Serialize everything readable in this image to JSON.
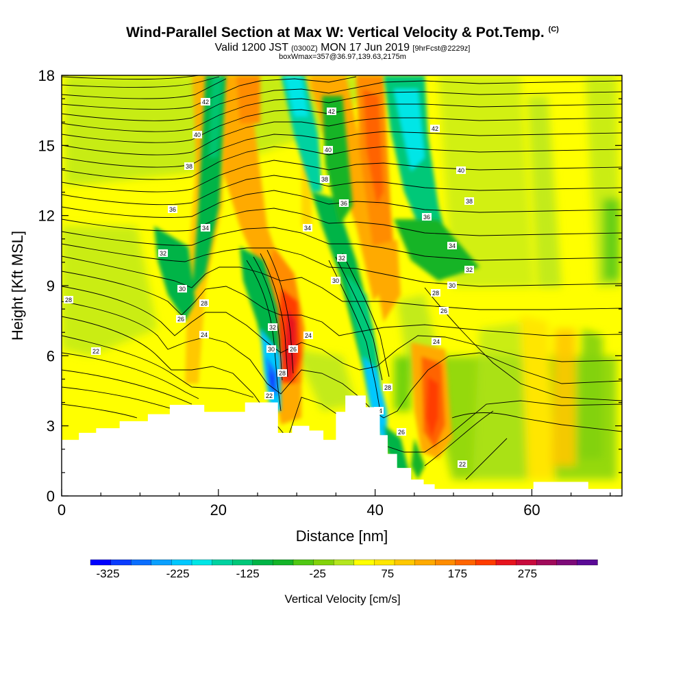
{
  "title": {
    "main": "Wind-Parallel Section at Max W: Vertical Velocity & Pot.Temp.",
    "mark": "(C)",
    "line2_a": "Valid 1200 JST",
    "line2_b": "(0300Z)",
    "line2_c": "MON 17 Jun 2019",
    "line2_d": "[9hrFcst@2229z]",
    "line3": "boxWmax=357@36.97,139.63,2175m"
  },
  "chart_data": {
    "type": "heatmap",
    "xlabel": "Distance [nm]",
    "ylabel": "Height [Kft MSL]",
    "xlim": [
      0,
      71.5
    ],
    "ylim": [
      0,
      18
    ],
    "x_ticks": [
      "0",
      "20",
      "40",
      "60"
    ],
    "y_ticks": [
      "0",
      "3",
      "6",
      "9",
      "12",
      "15",
      "18"
    ],
    "x_tick_values": [
      0,
      20,
      40,
      60
    ],
    "y_tick_values": [
      0,
      3,
      6,
      9,
      12,
      15,
      18
    ],
    "colorbar": {
      "label": "Vertical Velocity [cm/s]",
      "ticks": [
        "-325",
        "-225",
        "-125",
        "-25",
        "75",
        "175",
        "275"
      ],
      "colors": [
        "#0000ff",
        "#0a3cff",
        "#0a6eff",
        "#0aa0ff",
        "#00c8ff",
        "#00e6e6",
        "#00d2a0",
        "#00c878",
        "#00b446",
        "#14b428",
        "#50c814",
        "#82d20a",
        "#b4e61e",
        "#ffff00",
        "#ffe600",
        "#ffc800",
        "#ffaa00",
        "#ff8c00",
        "#ff6400",
        "#ff3c00",
        "#e6141e",
        "#c80a3c",
        "#a00a5a",
        "#7d0a78",
        "#5a0a96"
      ]
    },
    "contours": {
      "field": "Potential Temperature",
      "labels": [
        "22",
        "24",
        "26",
        "28",
        "30",
        "32",
        "34",
        "36",
        "38",
        "40",
        "42"
      ]
    },
    "terrain_kft": [
      [
        0,
        2.4
      ],
      [
        2.2,
        2.7
      ],
      [
        4.4,
        2.9
      ],
      [
        7.4,
        3.2
      ],
      [
        11,
        3.5
      ],
      [
        13.8,
        3.9
      ],
      [
        18.2,
        3.6
      ],
      [
        23.4,
        4.0
      ],
      [
        27.6,
        2.7
      ],
      [
        29.4,
        3.0
      ],
      [
        31.6,
        2.8
      ],
      [
        33.4,
        2.4
      ],
      [
        35.0,
        3.6
      ],
      [
        36.2,
        4.3
      ],
      [
        38.8,
        3.8
      ],
      [
        40.6,
        2.6
      ],
      [
        41.6,
        1.8
      ],
      [
        42.8,
        1.2
      ],
      [
        44.6,
        0.7
      ],
      [
        46.2,
        0.5
      ],
      [
        47.6,
        0.3
      ],
      [
        60.2,
        0.6
      ],
      [
        64.0,
        0.6
      ],
      [
        67.2,
        0.3
      ],
      [
        71.5,
        0.3
      ]
    ]
  }
}
